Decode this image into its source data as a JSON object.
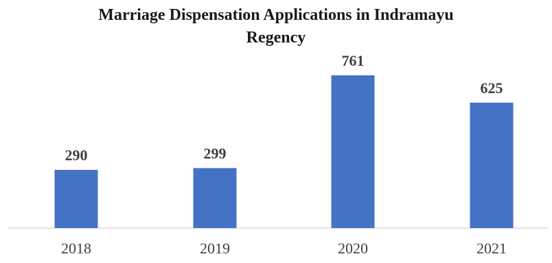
{
  "chart_data": {
    "type": "bar",
    "title_lines": [
      "Marriage Dispensation Applications in Indramayu",
      "Regency"
    ],
    "categories": [
      "2018",
      "2019",
      "2020",
      "2021"
    ],
    "values": [
      290,
      299,
      761,
      625
    ],
    "data_labels": [
      "290",
      "299",
      "761",
      "625"
    ],
    "xlabel": "",
    "ylabel": "",
    "ylim": [
      0,
      850
    ],
    "grid": false,
    "legend": "none",
    "bar_color": "#4472c4"
  }
}
